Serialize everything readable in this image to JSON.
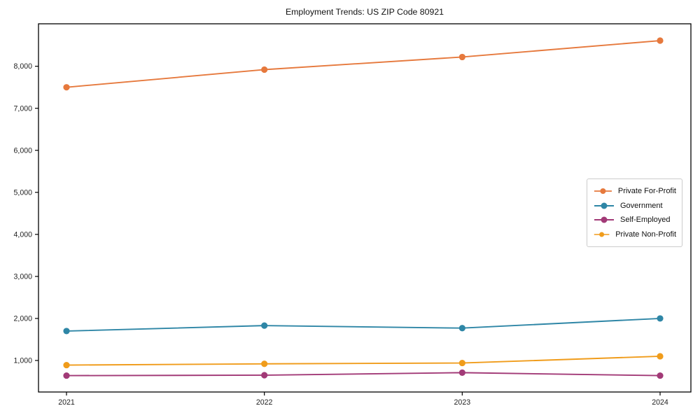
{
  "chart_data": {
    "type": "line",
    "title": "Employment Trends: US ZIP Code 80921",
    "categories": [
      "2021",
      "2022",
      "2023",
      "2024"
    ],
    "series": [
      {
        "name": "Private For-Profit",
        "color": "#e6793d",
        "values": [
          7500,
          7920,
          8220,
          8610
        ]
      },
      {
        "name": "Government",
        "color": "#2e86a6",
        "values": [
          1700,
          1830,
          1770,
          2000
        ]
      },
      {
        "name": "Self-Employed",
        "color": "#a23a77",
        "values": [
          640,
          650,
          710,
          640
        ]
      },
      {
        "name": "Private Non-Profit",
        "color": "#f09c1b",
        "values": [
          890,
          920,
          940,
          1100
        ]
      }
    ],
    "xlabel": "",
    "ylabel": "",
    "ylim": [
      250,
      9010
    ],
    "yticks": [
      1000,
      2000,
      3000,
      4000,
      5000,
      6000,
      7000,
      8000
    ],
    "ytick_format": "comma-thousands",
    "grid": false,
    "legend_position": "right-center",
    "axis_color": "#000000",
    "text_color": "#111111",
    "background": "#ffffff",
    "marker": "circle",
    "marker_radius": 4.6,
    "line_width": 1.9
  }
}
